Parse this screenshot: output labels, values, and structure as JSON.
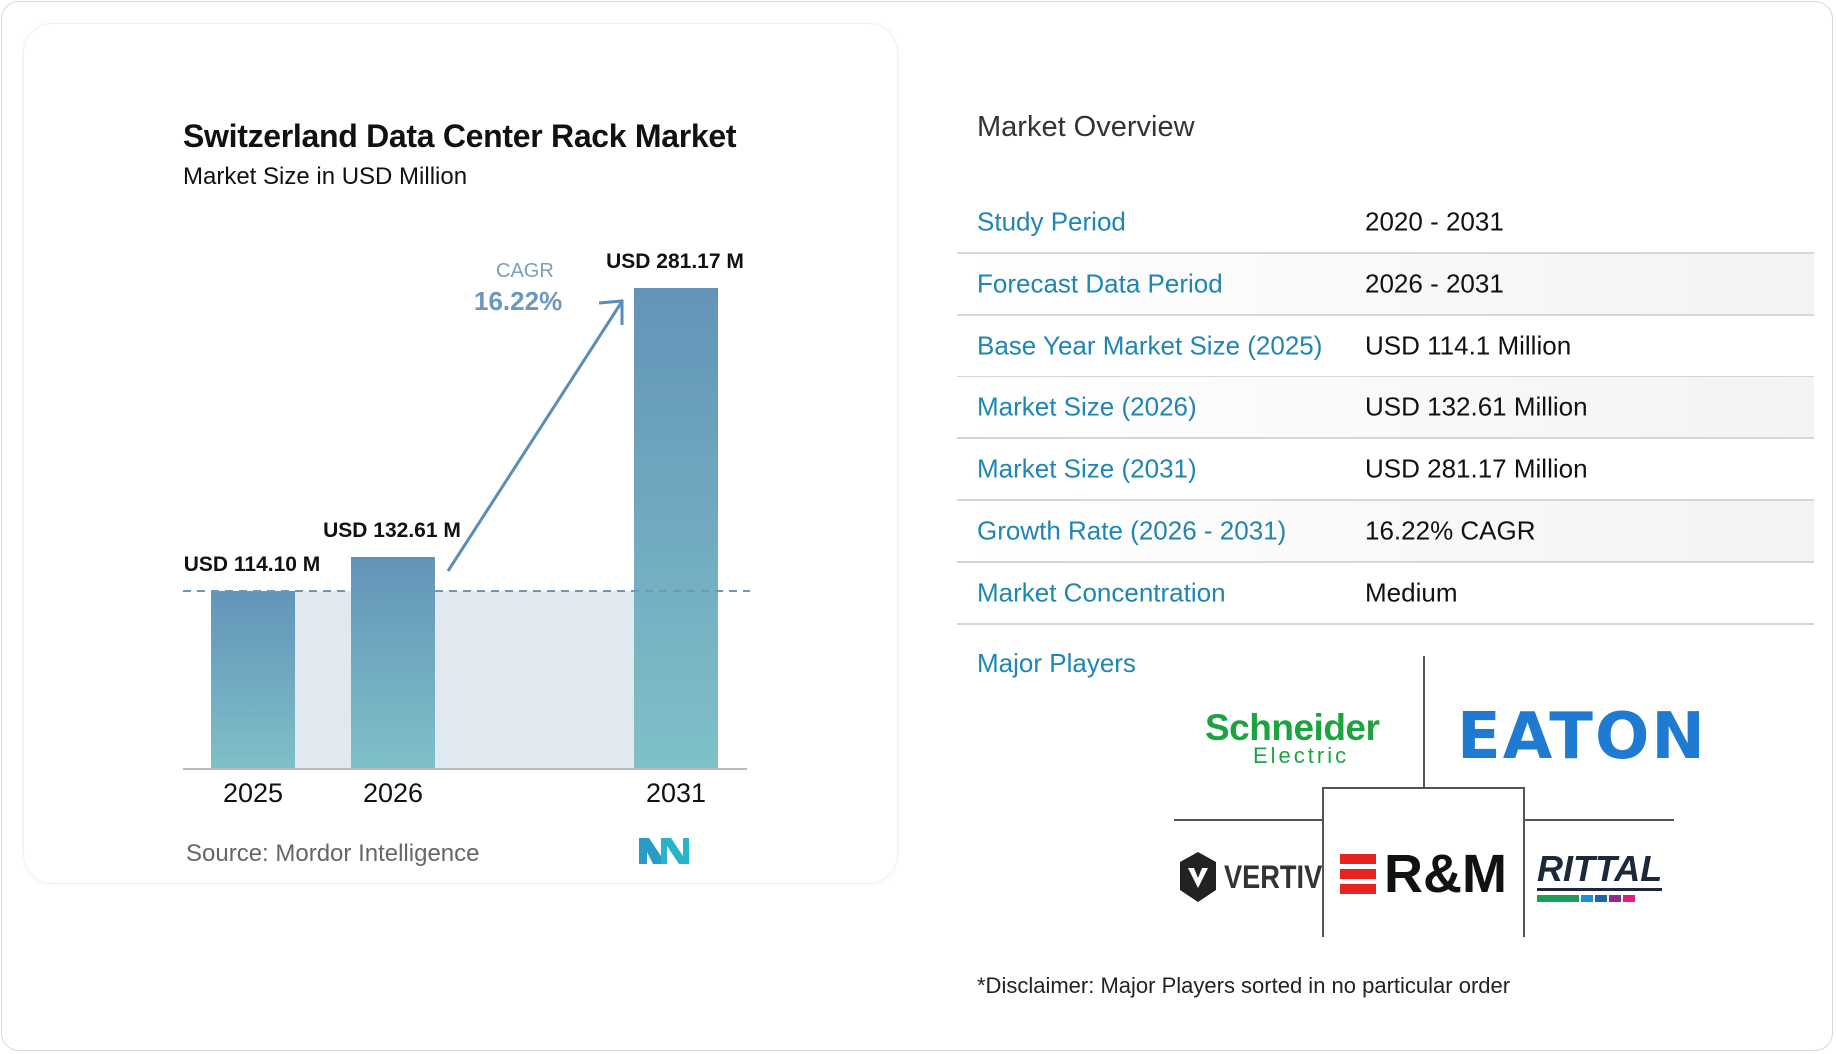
{
  "chart_data": {
    "type": "bar",
    "title": "Switzerland Data Center Rack Market",
    "subtitle": "Market Size in USD Million",
    "categories": [
      "2025",
      "2026",
      "2031"
    ],
    "values": [
      114.1,
      132.61,
      281.17
    ],
    "data_labels": [
      "USD 114.10 M",
      "USD 132.61 M",
      "USD 281.17 M"
    ],
    "annotation": {
      "label": "CAGR",
      "value": "16.22%"
    },
    "source": "Source:  Mordor Intelligence",
    "grid": false,
    "colors": {
      "bar_top": "#6394b8",
      "bar_bottom": "#7fc0c8",
      "arrow": "#5b8db5"
    }
  },
  "overview": {
    "title": "Market Overview",
    "rows": [
      {
        "label": "Study Period",
        "value": "2020 - 2031"
      },
      {
        "label": "Forecast Data Period",
        "value": "2026 - 2031"
      },
      {
        "label": "Base Year Market Size (2025)",
        "value": "USD 114.1 Million"
      },
      {
        "label": "Market Size (2026)",
        "value": "USD 132.61 Million"
      },
      {
        "label": "Market Size (2031)",
        "value": "USD 281.17 Million"
      },
      {
        "label": "Growth Rate (2026 - 2031)",
        "value": "16.22% CAGR"
      },
      {
        "label": "Market Concentration",
        "value": "Medium"
      }
    ],
    "major_players_label": "Major Players",
    "players": [
      "Schneider Electric",
      "EATON",
      "VERTIV",
      "R&M",
      "RITTAL"
    ],
    "disclaimer": "*Disclaimer: Major Players sorted in no particular order",
    "label_color": "#1f86b4"
  }
}
